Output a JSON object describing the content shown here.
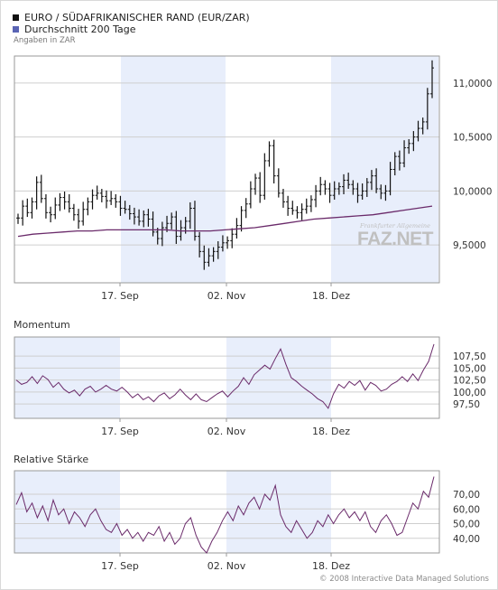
{
  "legend": [
    {
      "label": "EURO / SÜDAFRIKANISCHER RAND (EUR/ZAR)",
      "color": "#111111"
    },
    {
      "label": "Durchschnitt 200 Tage",
      "color": "#5a64b4"
    }
  ],
  "unit_note": "Angaben in ZAR",
  "watermark": {
    "small": "Frankfurter Allgemeine",
    "big": "FAZ.NET"
  },
  "copyright": "© 2008 Interactive Data Managed Solutions",
  "colors": {
    "price": "#111111",
    "avg": "#6a2a6a",
    "oscillator": "#6a2a6a",
    "band": "#e8eefb",
    "grid": "#cfcfcf",
    "axis": "#999999"
  },
  "chart_data": [
    {
      "type": "line",
      "title": "",
      "x_labels": [
        "17. Sep",
        "02. Nov",
        "18. Dez"
      ],
      "ylim": [
        9.15,
        11.25
      ],
      "yticks": [
        9.5,
        10.0,
        10.5,
        11.0
      ],
      "ytick_labels": [
        "9,5000",
        "10,0000",
        "10,5000",
        "11,0000"
      ],
      "grid": true,
      "series": [
        {
          "name": "EURO / SÜDAFRIKANISCHER RAND (EUR/ZAR)",
          "style": "ohlc",
          "values": [
            9.75,
            9.86,
            9.8,
            9.9,
            10.08,
            9.93,
            9.8,
            9.78,
            9.87,
            9.94,
            9.9,
            9.84,
            9.78,
            9.72,
            9.83,
            9.9,
            9.96,
            9.98,
            9.95,
            9.91,
            9.93,
            9.9,
            9.84,
            9.83,
            9.79,
            9.76,
            9.72,
            9.78,
            9.74,
            9.62,
            9.56,
            9.66,
            9.7,
            9.76,
            9.58,
            9.66,
            9.72,
            9.84,
            9.58,
            9.44,
            9.34,
            9.4,
            9.44,
            9.48,
            9.52,
            9.54,
            9.6,
            9.68,
            9.82,
            9.88,
            10.02,
            10.12,
            9.96,
            10.28,
            10.42,
            10.14,
            9.98,
            9.9,
            9.84,
            9.82,
            9.8,
            9.83,
            9.86,
            9.92,
            10.0,
            10.06,
            10.02,
            9.96,
            10.02,
            10.04,
            10.1,
            10.06,
            10.02,
            9.96,
            10.0,
            10.08,
            10.14,
            10.02,
            9.98,
            10.0,
            10.2,
            10.32,
            10.26,
            10.4,
            10.44,
            10.5,
            10.58,
            10.64,
            10.9,
            11.14
          ]
        },
        {
          "name": "Durchschnitt 200 Tage",
          "style": "line",
          "values": [
            9.58,
            9.6,
            9.61,
            9.62,
            9.63,
            9.63,
            9.64,
            9.64,
            9.64,
            9.64,
            9.64,
            9.63,
            9.63,
            9.63,
            9.64,
            9.65,
            9.66,
            9.68,
            9.7,
            9.72,
            9.74,
            9.75,
            9.76,
            9.77,
            9.78,
            9.8,
            9.82,
            9.84,
            9.86
          ]
        }
      ]
    },
    {
      "type": "line",
      "title": "Momentum",
      "x_labels": [
        "17. Sep",
        "02. Nov",
        "18. Dez"
      ],
      "ylim": [
        94.5,
        111.5
      ],
      "yticks": [
        97.5,
        100.0,
        102.5,
        105.0,
        107.5
      ],
      "ytick_labels": [
        "97,50",
        "100,00",
        "102,50",
        "105,00",
        "107,50"
      ],
      "grid": true,
      "series": [
        {
          "name": "Momentum",
          "values": [
            102.5,
            101.6,
            102.0,
            103.2,
            101.8,
            103.4,
            102.6,
            101.0,
            102.0,
            100.6,
            99.8,
            100.4,
            99.2,
            100.6,
            101.2,
            100.0,
            100.6,
            101.4,
            100.6,
            100.2,
            101.0,
            100.0,
            98.8,
            99.6,
            98.4,
            99.0,
            98.0,
            99.2,
            99.8,
            98.6,
            99.4,
            100.6,
            99.4,
            98.4,
            99.6,
            98.4,
            98.0,
            98.8,
            99.6,
            100.2,
            99.0,
            100.2,
            101.2,
            103.0,
            101.6,
            103.6,
            104.6,
            105.6,
            104.8,
            107.0,
            109.0,
            105.8,
            103.0,
            102.2,
            101.2,
            100.4,
            99.6,
            98.6,
            98.0,
            96.6,
            99.6,
            101.6,
            100.8,
            102.2,
            101.4,
            102.4,
            100.4,
            102.0,
            101.4,
            100.2,
            100.6,
            101.6,
            102.2,
            103.2,
            102.2,
            103.8,
            102.4,
            104.6,
            106.4,
            110.0
          ]
        }
      ]
    },
    {
      "type": "line",
      "title": "Relative Stärke",
      "x_labels": [
        "17. Sep",
        "02. Nov",
        "18. Dez"
      ],
      "ylim": [
        30,
        86
      ],
      "yticks": [
        40,
        50,
        60,
        70
      ],
      "ytick_labels": [
        "40,00",
        "50,00",
        "60,00",
        "70,00"
      ],
      "grid": true,
      "series": [
        {
          "name": "Relative Stärke",
          "values": [
            63,
            71,
            58,
            64,
            54,
            62,
            52,
            66,
            56,
            60,
            50,
            58,
            54,
            48,
            56,
            60,
            52,
            46,
            44,
            50,
            42,
            46,
            40,
            44,
            38,
            44,
            42,
            48,
            38,
            44,
            36,
            40,
            50,
            54,
            42,
            34,
            30,
            38,
            44,
            52,
            58,
            52,
            62,
            56,
            64,
            68,
            60,
            70,
            66,
            76,
            56,
            48,
            44,
            52,
            46,
            40,
            44,
            52,
            48,
            56,
            50,
            56,
            60,
            54,
            58,
            52,
            58,
            48,
            44,
            52,
            56,
            50,
            42,
            44,
            54,
            64,
            60,
            72,
            68,
            82
          ]
        }
      ]
    }
  ]
}
